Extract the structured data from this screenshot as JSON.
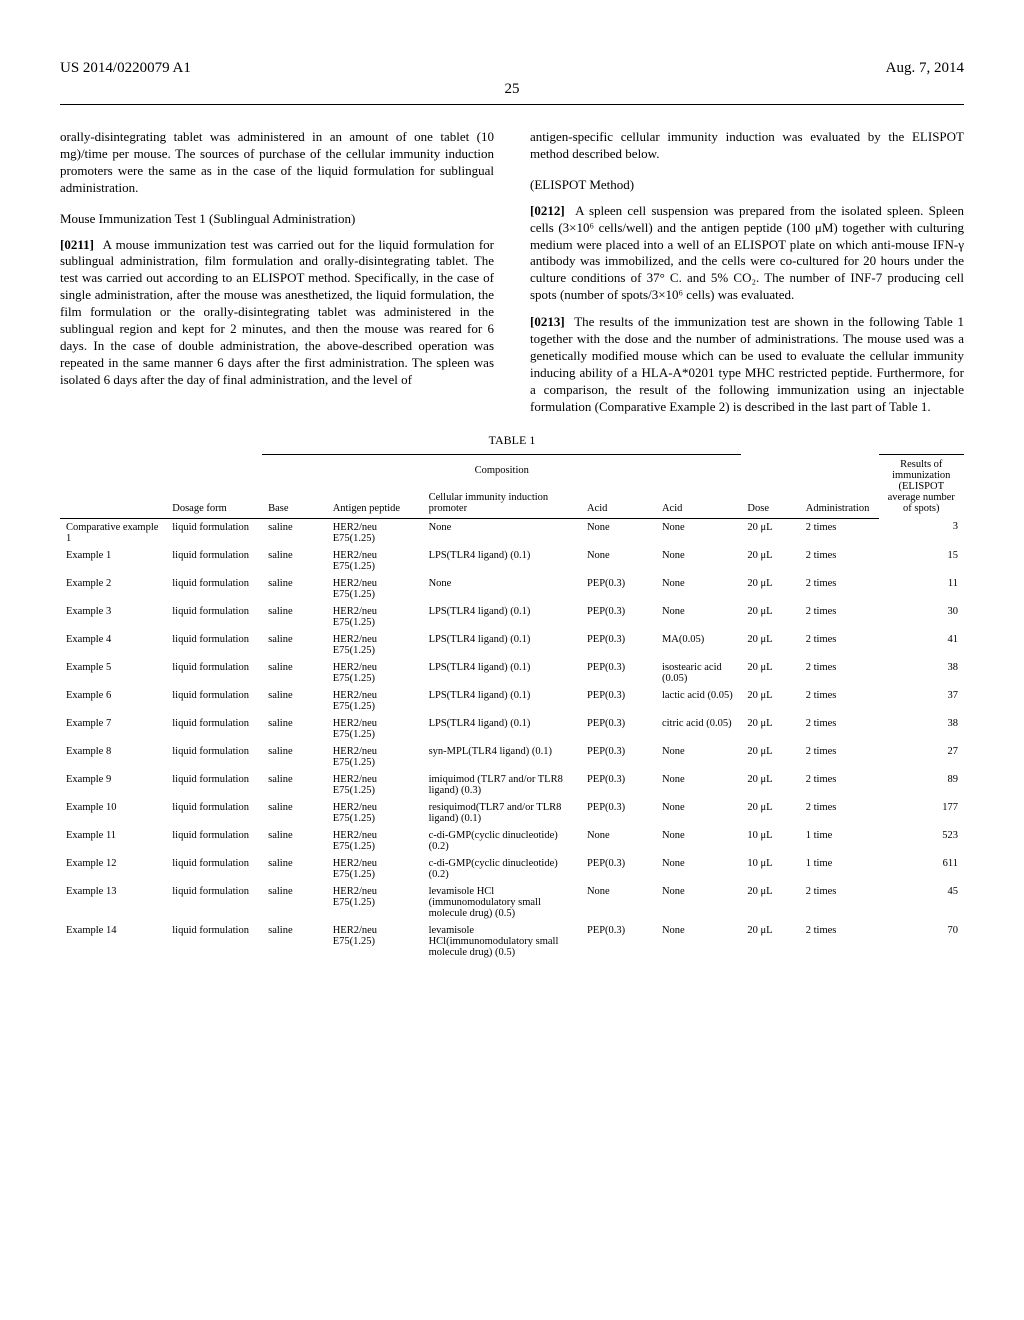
{
  "header": {
    "left": "US 2014/0220079 A1",
    "right": "Aug. 7, 2014",
    "pagenum": "25"
  },
  "body_left": {
    "p1": "orally-disintegrating tablet was administered in an amount of one tablet (10 mg)/time per mouse. The sources of purchase of the cellular immunity induction promoters were the same as in the case of the liquid formulation for sublingual administration.",
    "subhead": "Mouse Immunization Test 1 (Sublingual Administration)",
    "p2_num": "[0211]",
    "p2": "A mouse immunization test was carried out for the liquid formulation for sublingual administration, film formulation and orally-disintegrating tablet. The test was carried out according to an ELISPOT method. Specifically, in the case of single administration, after the mouse was anesthetized, the liquid formulation, the film formulation or the orally-disintegrating tablet was administered in the sublingual region and kept for 2 minutes, and then the mouse was reared for 6 days. In the case of double administration, the above-described operation was repeated in the same manner 6 days after the first administration. The spleen was isolated 6 days after the day of final administration, and the level of"
  },
  "body_right": {
    "p3": "antigen-specific cellular immunity induction was evaluated by the ELISPOT method described below.",
    "subhead": "(ELISPOT Method)",
    "p4_num": "[0212]",
    "p4": "A spleen cell suspension was prepared from the isolated spleen. Spleen cells (3×10⁶ cells/well) and the antigen peptide (100 μM) together with culturing medium were placed into a well of an ELISPOT plate on which anti-mouse IFN-γ antibody was immobilized, and the cells were co-cultured for 20 hours under the culture conditions of 37° C. and 5% CO₂. The number of INF-7 producing cell spots (number of spots/3×10⁶ cells) was evaluated.",
    "p5_num": "[0213]",
    "p5": "The results of the immunization test are shown in the following Table 1 together with the dose and the number of administrations. The mouse used was a genetically modified mouse which can be used to evaluate the cellular immunity inducing ability of a HLA-A*0201 type MHC restricted peptide. Furthermore, for a comparison, the result of the following immunization using an injectable formulation (Comparative Example 2) is described in the last part of Table 1."
  },
  "table": {
    "title": "TABLE 1",
    "headers": {
      "composition": "Composition",
      "results": "Results of immunization (ELISPOT average number of spots)",
      "col0": "",
      "col1": "Dosage form",
      "col2": "Base",
      "col3": "Antigen peptide",
      "col4": "Cellular immunity induction promoter",
      "col5": "Acid",
      "col6": "Acid",
      "col7": "Dose",
      "col8": "Administration"
    },
    "rows": [
      {
        "ex": "Comparative example 1",
        "form": "liquid formulation",
        "base": "saline",
        "ag": "HER2/neu E75(1.25)",
        "cip": "None",
        "ac1": "None",
        "ac2": "None",
        "dose": "20 μL",
        "admin": "2 times",
        "res": "3"
      },
      {
        "ex": "Example 1",
        "form": "liquid formulation",
        "base": "saline",
        "ag": "HER2/neu E75(1.25)",
        "cip": "LPS(TLR4 ligand) (0.1)",
        "ac1": "None",
        "ac2": "None",
        "dose": "20 μL",
        "admin": "2 times",
        "res": "15"
      },
      {
        "ex": "Example 2",
        "form": "liquid formulation",
        "base": "saline",
        "ag": "HER2/neu E75(1.25)",
        "cip": "None",
        "ac1": "PEP(0.3)",
        "ac2": "None",
        "dose": "20 μL",
        "admin": "2 times",
        "res": "11"
      },
      {
        "ex": "Example 3",
        "form": "liquid formulation",
        "base": "saline",
        "ag": "HER2/neu E75(1.25)",
        "cip": "LPS(TLR4 ligand) (0.1)",
        "ac1": "PEP(0.3)",
        "ac2": "None",
        "dose": "20 μL",
        "admin": "2 times",
        "res": "30"
      },
      {
        "ex": "Example 4",
        "form": "liquid formulation",
        "base": "saline",
        "ag": "HER2/neu E75(1.25)",
        "cip": "LPS(TLR4 ligand) (0.1)",
        "ac1": "PEP(0.3)",
        "ac2": "MA(0.05)",
        "dose": "20 μL",
        "admin": "2 times",
        "res": "41"
      },
      {
        "ex": "Example 5",
        "form": "liquid formulation",
        "base": "saline",
        "ag": "HER2/neu E75(1.25)",
        "cip": "LPS(TLR4 ligand) (0.1)",
        "ac1": "PEP(0.3)",
        "ac2": "isostearic acid (0.05)",
        "dose": "20 μL",
        "admin": "2 times",
        "res": "38"
      },
      {
        "ex": "Example 6",
        "form": "liquid formulation",
        "base": "saline",
        "ag": "HER2/neu E75(1.25)",
        "cip": "LPS(TLR4 ligand) (0.1)",
        "ac1": "PEP(0.3)",
        "ac2": "lactic acid (0.05)",
        "dose": "20 μL",
        "admin": "2 times",
        "res": "37"
      },
      {
        "ex": "Example 7",
        "form": "liquid formulation",
        "base": "saline",
        "ag": "HER2/neu E75(1.25)",
        "cip": "LPS(TLR4 ligand) (0.1)",
        "ac1": "PEP(0.3)",
        "ac2": "citric acid (0.05)",
        "dose": "20 μL",
        "admin": "2 times",
        "res": "38"
      },
      {
        "ex": "Example 8",
        "form": "liquid formulation",
        "base": "saline",
        "ag": "HER2/neu E75(1.25)",
        "cip": "syn-MPL(TLR4 ligand) (0.1)",
        "ac1": "PEP(0.3)",
        "ac2": "None",
        "dose": "20 μL",
        "admin": "2 times",
        "res": "27"
      },
      {
        "ex": "Example 9",
        "form": "liquid formulation",
        "base": "saline",
        "ag": "HER2/neu E75(1.25)",
        "cip": "imiquimod (TLR7 and/or TLR8 ligand) (0.3)",
        "ac1": "PEP(0.3)",
        "ac2": "None",
        "dose": "20 μL",
        "admin": "2 times",
        "res": "89"
      },
      {
        "ex": "Example 10",
        "form": "liquid formulation",
        "base": "saline",
        "ag": "HER2/neu E75(1.25)",
        "cip": "resiquimod(TLR7 and/or TLR8 ligand) (0.1)",
        "ac1": "PEP(0.3)",
        "ac2": "None",
        "dose": "20 μL",
        "admin": "2 times",
        "res": "177"
      },
      {
        "ex": "Example 11",
        "form": "liquid formulation",
        "base": "saline",
        "ag": "HER2/neu E75(1.25)",
        "cip": "c-di-GMP(cyclic dinucleotide) (0.2)",
        "ac1": "None",
        "ac2": "None",
        "dose": "10 μL",
        "admin": "1 time",
        "res": "523"
      },
      {
        "ex": "Example 12",
        "form": "liquid formulation",
        "base": "saline",
        "ag": "HER2/neu E75(1.25)",
        "cip": "c-di-GMP(cyclic dinucleotide) (0.2)",
        "ac1": "PEP(0.3)",
        "ac2": "None",
        "dose": "10 μL",
        "admin": "1 time",
        "res": "611"
      },
      {
        "ex": "Example 13",
        "form": "liquid formulation",
        "base": "saline",
        "ag": "HER2/neu E75(1.25)",
        "cip": "levamisole HCl (immunomodulatory small molecule drug) (0.5)",
        "ac1": "None",
        "ac2": "None",
        "dose": "20 μL",
        "admin": "2 times",
        "res": "45"
      },
      {
        "ex": "Example 14",
        "form": "liquid formulation",
        "base": "saline",
        "ag": "HER2/neu E75(1.25)",
        "cip": "levamisole HCl(immunomodulatory small molecule drug) (0.5)",
        "ac1": "PEP(0.3)",
        "ac2": "None",
        "dose": "20 μL",
        "admin": "2 times",
        "res": "70"
      }
    ]
  }
}
